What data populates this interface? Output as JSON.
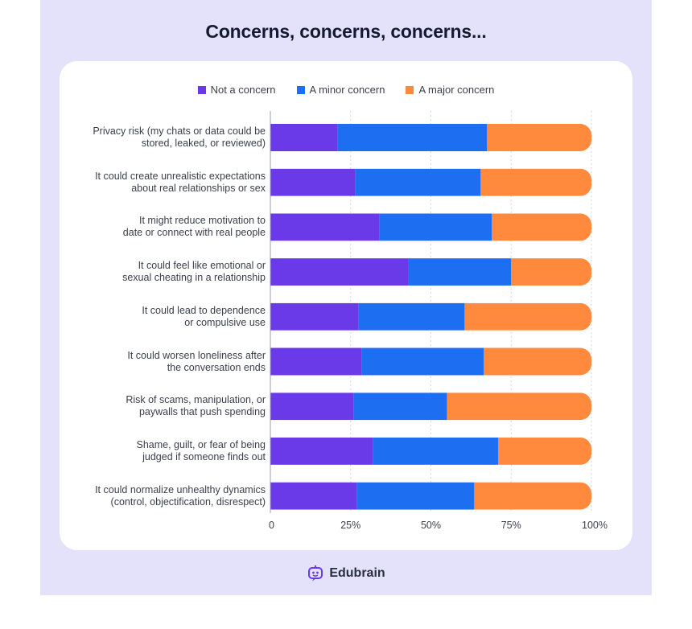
{
  "chart_data": {
    "type": "bar",
    "orientation": "horizontal",
    "stacked": true,
    "title": "Concerns, concerns, concerns...",
    "categories": [
      "Privacy risk (my chats or data could be stored, leaked, or reviewed)",
      "It could create unrealistic expectations about real relationships or sex",
      "It might reduce motivation to date or connect with real people",
      "It could feel like emotional or sexual cheating in a relationship",
      "It could lead to dependence or compulsive use",
      "It could worsen loneliness after the conversation ends",
      "Risk of scams, manipulation, or paywalls that push spending",
      "Shame, guilt, or fear of being judged if someone finds out",
      "It could normalize unhealthy dynamics (control, objectification, disrespect)"
    ],
    "category_lines": [
      [
        "Privacy risk (my chats or data could be",
        "stored, leaked, or reviewed)"
      ],
      [
        "It could create unrealistic expectations",
        "about real relationships or sex"
      ],
      [
        "It might reduce motivation to",
        "date or connect with real people"
      ],
      [
        "It could feel like emotional or",
        "sexual cheating in a relationship"
      ],
      [
        "It could lead to dependence",
        "or compulsive use"
      ],
      [
        "It could worsen loneliness after",
        "the conversation ends"
      ],
      [
        "Risk of scams, manipulation, or",
        "paywalls that push spending"
      ],
      [
        "Shame, guilt, or fear of being",
        "judged if someone finds out"
      ],
      [
        "It could normalize unhealthy dynamics",
        "(control, objectification, disrespect)"
      ]
    ],
    "series": [
      {
        "name": "Not a concern",
        "color": "#6a3ae8",
        "values": [
          21,
          26.5,
          34,
          43,
          27.5,
          28.5,
          26,
          32,
          27
        ]
      },
      {
        "name": "A minor concern",
        "color": "#1d6ef0",
        "values": [
          46.5,
          39,
          35,
          32,
          33,
          38,
          29,
          39,
          36.5
        ]
      },
      {
        "name": "A major concern",
        "color": "#ff8a3d",
        "values": [
          32.5,
          34.5,
          31,
          25,
          39.5,
          33.5,
          45,
          29,
          36.5
        ]
      }
    ],
    "xlim": [
      0,
      100
    ],
    "xticks": [
      "0",
      "25%",
      "50%",
      "75%",
      "100%"
    ],
    "xtick_values": [
      0,
      25,
      50,
      75,
      100
    ]
  },
  "brand": {
    "name": "Edubrain",
    "icon": "robot-face-icon"
  }
}
